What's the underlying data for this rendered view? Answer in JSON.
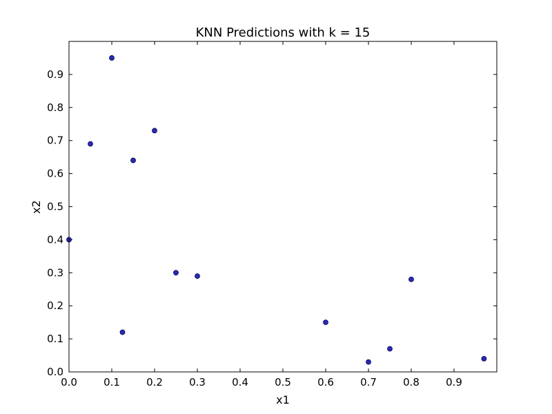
{
  "chart_data": {
    "type": "scatter",
    "title": "KNN Predictions with k = 15",
    "xlabel": "x1",
    "ylabel": "x2",
    "xlim": [
      0.0,
      1.0
    ],
    "ylim": [
      0.0,
      1.0
    ],
    "xticks": [
      "0.0",
      "0.1",
      "0.2",
      "0.3",
      "0.4",
      "0.5",
      "0.6",
      "0.7",
      "0.8",
      "0.9"
    ],
    "yticks": [
      "0.0",
      "0.1",
      "0.2",
      "0.3",
      "0.4",
      "0.5",
      "0.6",
      "0.7",
      "0.8",
      "0.9"
    ],
    "grid": false,
    "colors": {
      "point_fill": "#2a2ab8",
      "point_stroke": "#000055"
    },
    "points": [
      {
        "x": 0.0,
        "y": 0.4
      },
      {
        "x": 0.05,
        "y": 0.69
      },
      {
        "x": 0.1,
        "y": 0.95
      },
      {
        "x": 0.125,
        "y": 0.12
      },
      {
        "x": 0.15,
        "y": 0.64
      },
      {
        "x": 0.2,
        "y": 0.73
      },
      {
        "x": 0.25,
        "y": 0.3
      },
      {
        "x": 0.3,
        "y": 0.29
      },
      {
        "x": 0.6,
        "y": 0.15
      },
      {
        "x": 0.7,
        "y": 0.03
      },
      {
        "x": 0.75,
        "y": 0.07
      },
      {
        "x": 0.8,
        "y": 0.28
      },
      {
        "x": 0.97,
        "y": 0.04
      }
    ]
  }
}
